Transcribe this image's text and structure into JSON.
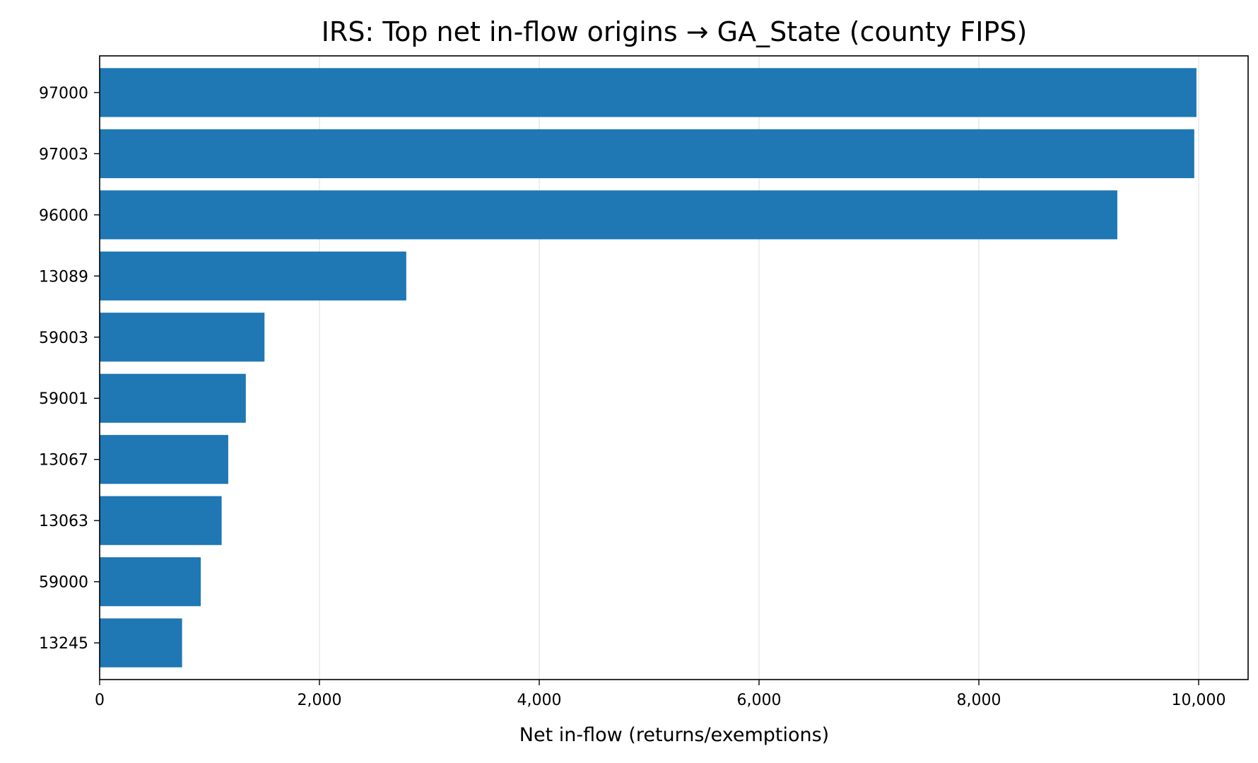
{
  "chart_data": {
    "type": "bar",
    "orientation": "horizontal",
    "title": "IRS: Top net in-flow origins → GA_State (county FIPS)",
    "xlabel": "Net in-flow (returns/exemptions)",
    "ylabel": "",
    "categories": [
      "97000",
      "97003",
      "96000",
      "13089",
      "59003",
      "59001",
      "13067",
      "13063",
      "59000",
      "13245"
    ],
    "values": [
      9980,
      9960,
      9260,
      2790,
      1500,
      1330,
      1170,
      1110,
      920,
      750
    ],
    "xlim": [
      0,
      10450
    ],
    "xticks": [
      0,
      2000,
      4000,
      6000,
      8000,
      10000
    ],
    "xtick_labels": [
      "0",
      "2,000",
      "4,000",
      "6,000",
      "8,000",
      "10,000"
    ],
    "grid": "vertical",
    "legend": "none",
    "bar_color": "#1f77b4",
    "grid_color": "#e6e6e6"
  }
}
